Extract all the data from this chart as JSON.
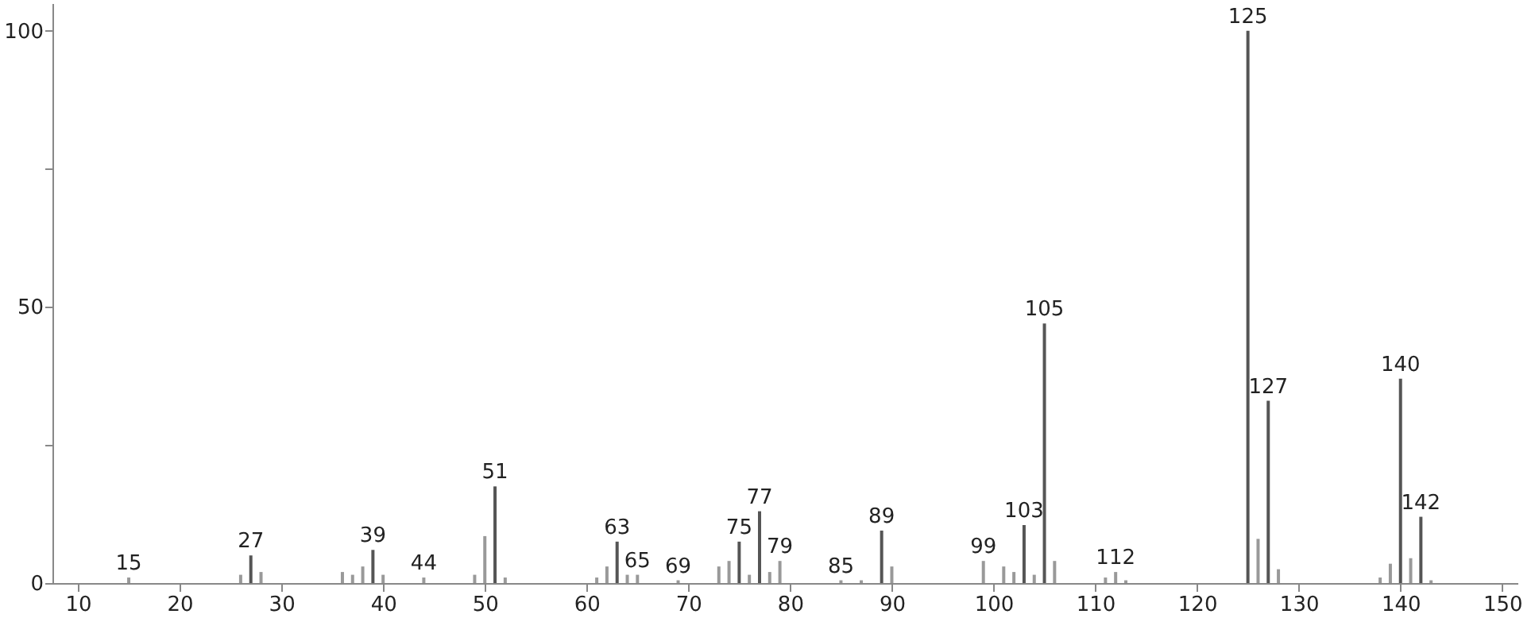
{
  "chart_data": {
    "type": "bar",
    "x": [
      15,
      26,
      27,
      28,
      36,
      37,
      38,
      39,
      40,
      44,
      49,
      50,
      51,
      52,
      61,
      62,
      63,
      64,
      65,
      69,
      73,
      74,
      75,
      76,
      77,
      78,
      79,
      85,
      87,
      89,
      90,
      99,
      101,
      102,
      103,
      104,
      105,
      106,
      111,
      112,
      113,
      125,
      126,
      127,
      128,
      138,
      139,
      140,
      141,
      142,
      143
    ],
    "values": [
      1,
      1.5,
      5,
      2,
      2,
      1.5,
      3,
      6,
      1.5,
      1,
      1.5,
      8.5,
      17.5,
      1,
      1,
      3,
      7.5,
      1.5,
      1.5,
      0.5,
      3,
      4,
      7.5,
      1.5,
      13,
      2,
      4,
      0.5,
      0.5,
      9.5,
      3,
      4,
      3,
      2,
      10.5,
      1.5,
      47,
      4,
      1,
      2,
      0.5,
      100,
      8,
      33,
      2.5,
      1,
      3.5,
      37,
      4.5,
      12,
      0.5
    ],
    "colors": [
      "#999999",
      "#999999",
      "#555555",
      "#999999",
      "#999999",
      "#999999",
      "#999999",
      "#555555",
      "#999999",
      "#999999",
      "#999999",
      "#999999",
      "#555555",
      "#999999",
      "#999999",
      "#999999",
      "#555555",
      "#999999",
      "#999999",
      "#999999",
      "#999999",
      "#999999",
      "#555555",
      "#999999",
      "#555555",
      "#999999",
      "#999999",
      "#999999",
      "#999999",
      "#555555",
      "#999999",
      "#999999",
      "#999999",
      "#999999",
      "#555555",
      "#999999",
      "#555555",
      "#999999",
      "#999999",
      "#999999",
      "#999999",
      "#555555",
      "#999999",
      "#555555",
      "#999999",
      "#999999",
      "#999999",
      "#555555",
      "#999999",
      "#555555",
      "#999999"
    ],
    "annotations": [
      {
        "text": "15",
        "x": 15,
        "y": 1
      },
      {
        "text": "27",
        "x": 27,
        "y": 5
      },
      {
        "text": "39",
        "x": 39,
        "y": 6
      },
      {
        "text": "44",
        "x": 44,
        "y": 1
      },
      {
        "text": "51",
        "x": 51,
        "y": 17.5
      },
      {
        "text": "63",
        "x": 63,
        "y": 7.5
      },
      {
        "text": "65",
        "x": 65,
        "y": 1.5
      },
      {
        "text": "69",
        "x": 69,
        "y": 0.5
      },
      {
        "text": "75",
        "x": 75,
        "y": 7.5
      },
      {
        "text": "77",
        "x": 77,
        "y": 13
      },
      {
        "text": "79",
        "x": 79,
        "y": 4
      },
      {
        "text": "85",
        "x": 85,
        "y": 0.5
      },
      {
        "text": "89",
        "x": 89,
        "y": 9.5
      },
      {
        "text": "99",
        "x": 99,
        "y": 4
      },
      {
        "text": "103",
        "x": 103,
        "y": 10.5
      },
      {
        "text": "105",
        "x": 105,
        "y": 47
      },
      {
        "text": "112",
        "x": 112,
        "y": 2
      },
      {
        "text": "125",
        "x": 125,
        "y": 100
      },
      {
        "text": "127",
        "x": 127,
        "y": 33
      },
      {
        "text": "140",
        "x": 140,
        "y": 37
      },
      {
        "text": "142",
        "x": 142,
        "y": 12
      }
    ],
    "xlim": [
      7.5,
      151.5
    ],
    "xticks": [
      10,
      20,
      30,
      40,
      50,
      60,
      70,
      80,
      90,
      100,
      110,
      120,
      130,
      140,
      150
    ],
    "ylim": [
      0,
      105
    ],
    "yticks": [
      0,
      {
        "value": 25,
        "label": null
      },
      50,
      {
        "value": 75,
        "label": null
      },
      100
    ],
    "grid": false
  }
}
